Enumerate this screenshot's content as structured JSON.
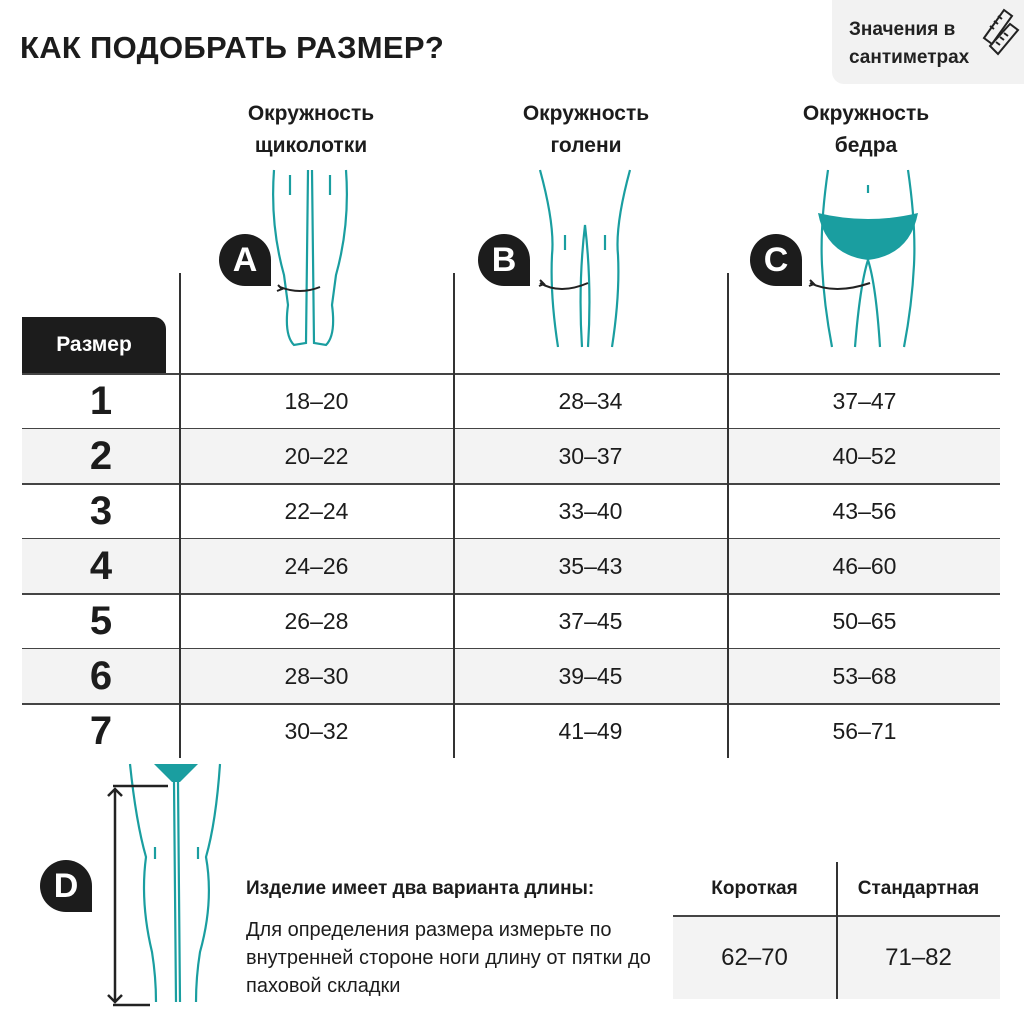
{
  "title": "КАК ПОДОБРАТЬ РАЗМЕР?",
  "units_note": [
    "Значения в",
    "сантиметрах"
  ],
  "units_icon": "ruler-icon",
  "accent_color": "#1a9ea0",
  "columns": [
    {
      "badge": "A",
      "label": [
        "Окружность",
        "щиколотки"
      ]
    },
    {
      "badge": "B",
      "label": [
        "Окружность",
        "голени"
      ]
    },
    {
      "badge": "C",
      "label": [
        "Окружность",
        "бедра"
      ]
    }
  ],
  "size_header": "Размер",
  "rows": [
    {
      "size": "1",
      "values": [
        "18–20",
        "28–34",
        "37–47"
      ]
    },
    {
      "size": "2",
      "values": [
        "20–22",
        "30–37",
        "40–52"
      ]
    },
    {
      "size": "3",
      "values": [
        "22–24",
        "33–40",
        "43–56"
      ]
    },
    {
      "size": "4",
      "values": [
        "24–26",
        "35–43",
        "46–60"
      ]
    },
    {
      "size": "5",
      "values": [
        "26–28",
        "37–45",
        "50–65"
      ]
    },
    {
      "size": "6",
      "values": [
        "28–30",
        "39–45",
        "53–68"
      ]
    },
    {
      "size": "7",
      "values": [
        "30–32",
        "41–49",
        "56–71"
      ]
    }
  ],
  "length": {
    "badge": "D",
    "title": "Изделие имеет два варианта длины:",
    "description": "Для определения размера измерьте по внутренней стороне ноги длину от пятки до паховой складки",
    "headers": [
      "Короткая",
      "Стандартная"
    ],
    "values": [
      "62–70",
      "71–82"
    ]
  }
}
